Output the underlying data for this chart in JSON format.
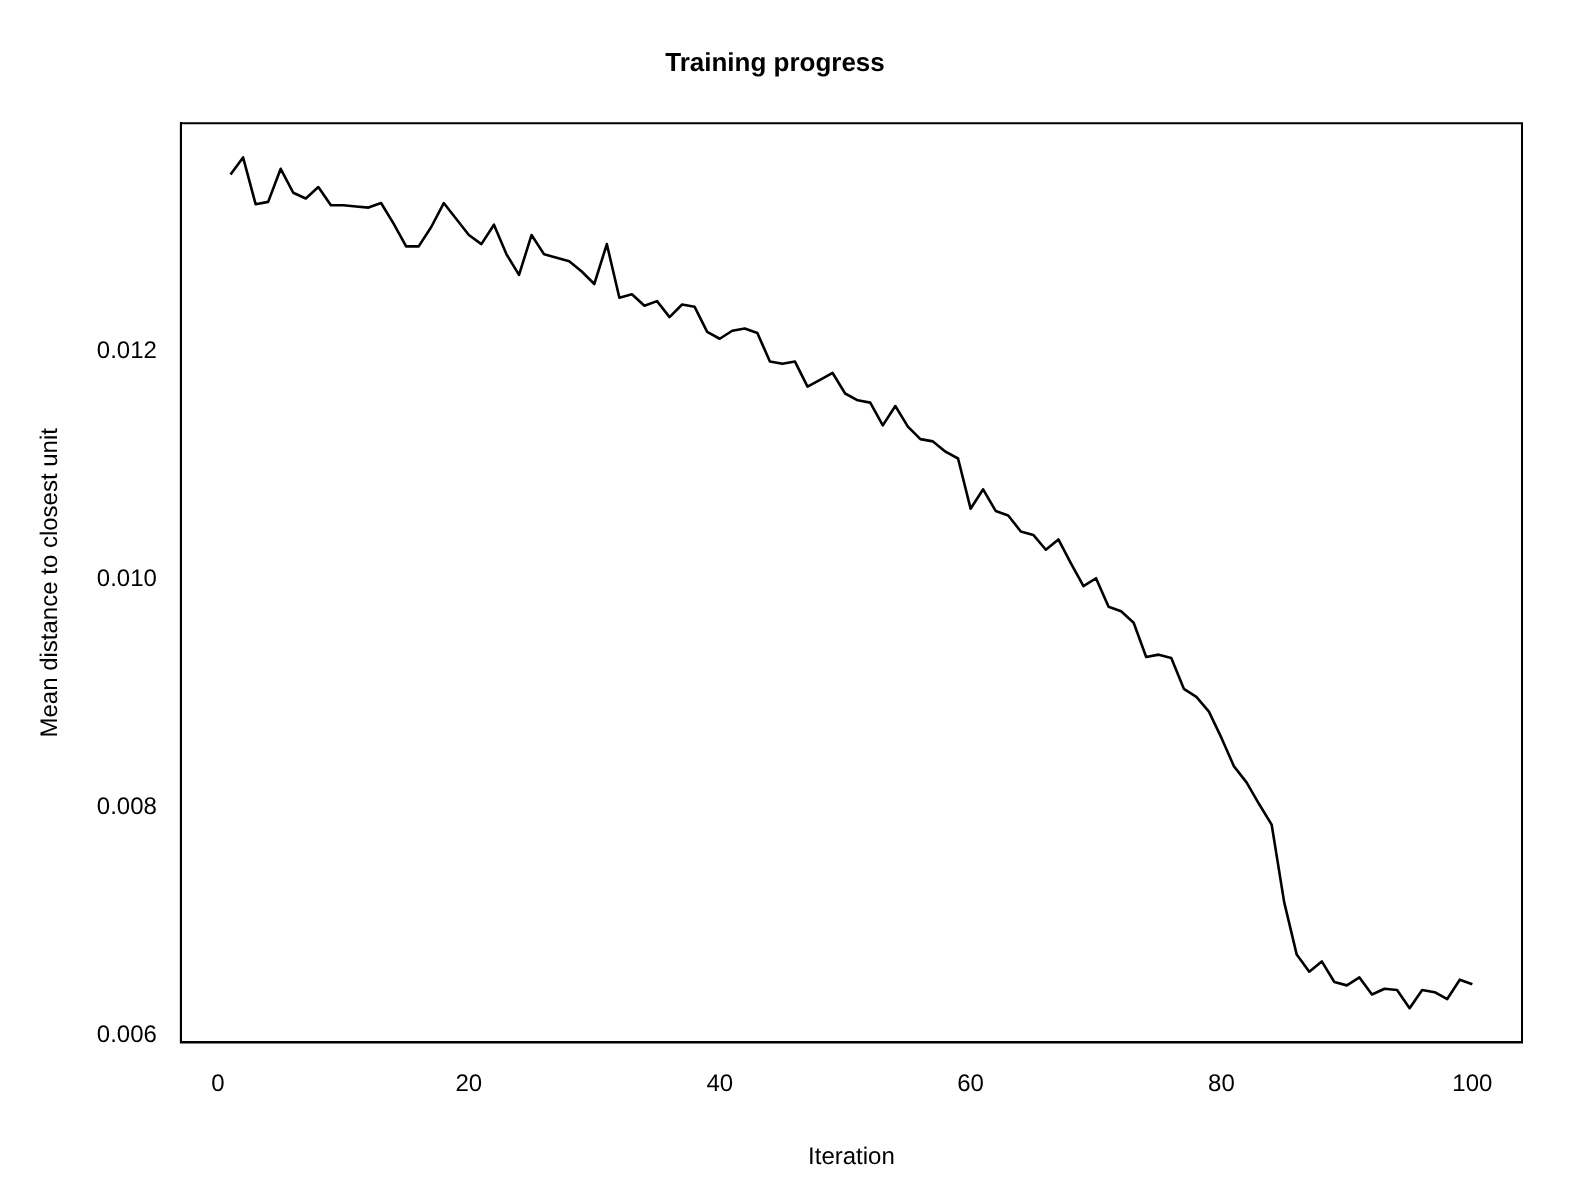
{
  "chart_data": {
    "type": "line",
    "title": "Training progress",
    "xlabel": "Iteration",
    "ylabel": "Mean distance to closest unit",
    "x": [
      1,
      2,
      3,
      4,
      5,
      6,
      7,
      8,
      9,
      10,
      11,
      12,
      13,
      14,
      15,
      16,
      17,
      18,
      19,
      20,
      21,
      22,
      23,
      24,
      25,
      26,
      27,
      28,
      29,
      30,
      31,
      32,
      33,
      34,
      35,
      36,
      37,
      38,
      39,
      40,
      41,
      42,
      43,
      44,
      45,
      46,
      47,
      48,
      49,
      50,
      51,
      52,
      53,
      54,
      55,
      56,
      57,
      58,
      59,
      60,
      61,
      62,
      63,
      64,
      65,
      66,
      67,
      68,
      69,
      70,
      71,
      72,
      73,
      74,
      75,
      76,
      77,
      78,
      79,
      80,
      81,
      82,
      83,
      84,
      85,
      86,
      87,
      88,
      89,
      90,
      91,
      92,
      93,
      94,
      95,
      96,
      97,
      98,
      99,
      100
    ],
    "series": [
      {
        "color": "#000000",
        "values": [
          0.01355,
          0.0137,
          0.01329,
          0.01331,
          0.0136,
          0.01339,
          0.01334,
          0.01344,
          0.01328,
          0.01328,
          0.01327,
          0.01326,
          0.0133,
          0.01312,
          0.01292,
          0.01292,
          0.01309,
          0.0133,
          0.01316,
          0.01302,
          0.01294,
          0.01311,
          0.01285,
          0.01267,
          0.01302,
          0.01285,
          0.01282,
          0.01279,
          0.0127,
          0.01259,
          0.01294,
          0.01247,
          0.0125,
          0.0124,
          0.01244,
          0.0123,
          0.01241,
          0.01239,
          0.01217,
          0.01211,
          0.01218,
          0.0122,
          0.01216,
          0.01191,
          0.01189,
          0.01191,
          0.01169,
          0.01175,
          0.01181,
          0.01163,
          0.01157,
          0.01155,
          0.01135,
          0.01152,
          0.01134,
          0.01123,
          0.01121,
          0.01112,
          0.01106,
          0.01062,
          0.01079,
          0.0106,
          0.01056,
          0.01042,
          0.01039,
          0.01026,
          0.01035,
          0.01014,
          0.00994,
          0.01001,
          0.00976,
          0.00972,
          0.00962,
          0.00932,
          0.00934,
          0.00931,
          0.00904,
          0.00897,
          0.00884,
          0.00861,
          0.00836,
          0.00822,
          0.00803,
          0.00785,
          0.00717,
          0.00671,
          0.00656,
          0.00665,
          0.00647,
          0.00644,
          0.00651,
          0.00636,
          0.00641,
          0.0064,
          0.00624,
          0.0064,
          0.00638,
          0.00632,
          0.00649,
          0.00645
        ]
      }
    ],
    "xlim": [
      -2.96,
      103.96
    ],
    "ylim": [
      0.00594,
      0.014
    ],
    "xticks": [
      0,
      20,
      40,
      60,
      80,
      100
    ],
    "yticks": [
      0.006,
      0.008,
      {
        "value": 0.01,
        "label": "0.010"
      },
      0.012
    ],
    "grid": false,
    "legend": false,
    "marker": "none",
    "line_style": "solid"
  }
}
